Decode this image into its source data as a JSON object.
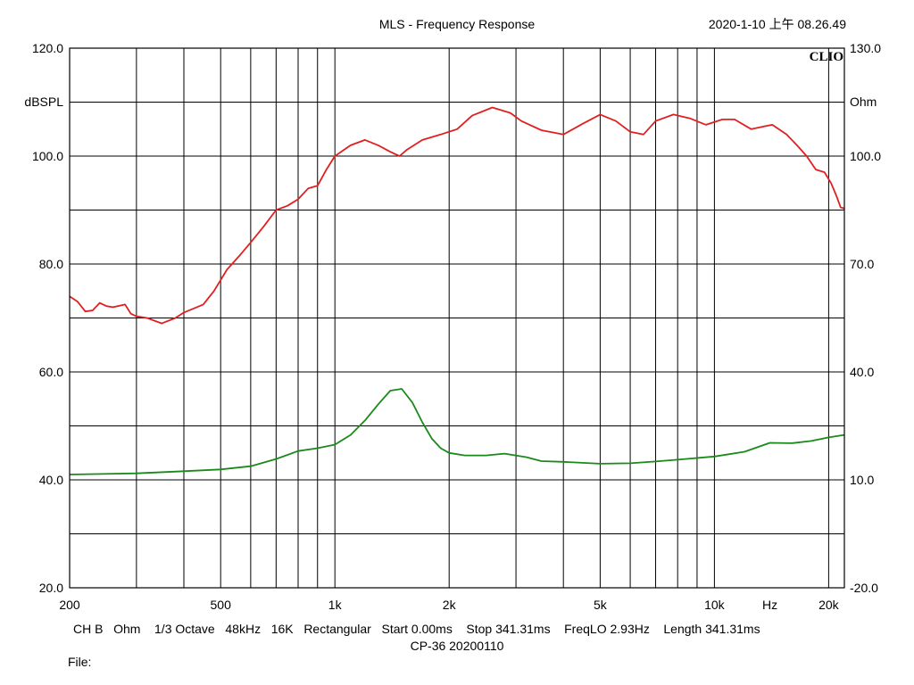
{
  "chart_data": {
    "type": "line",
    "title": "MLS - Frequency Response",
    "timestamp": "2020-1-10 上午 08.26.49",
    "logo": "CLIO",
    "x_scale": "log",
    "xlim": [
      200,
      22000
    ],
    "x_ticks": [
      {
        "value": 200,
        "label": "200"
      },
      {
        "value": 500,
        "label": "500"
      },
      {
        "value": 1000,
        "label": "1k"
      },
      {
        "value": 2000,
        "label": "2k"
      },
      {
        "value": 5000,
        "label": "5k"
      },
      {
        "value": 10000,
        "label": "10k"
      },
      {
        "value": 14000,
        "label": "Hz"
      },
      {
        "value": 20000,
        "label": "20k"
      }
    ],
    "x_gridlines": [
      300,
      400,
      500,
      600,
      700,
      800,
      900,
      1000,
      2000,
      3000,
      4000,
      5000,
      6000,
      7000,
      8000,
      9000,
      10000,
      20000
    ],
    "y_left": {
      "unit_label": "dBSPL",
      "ylim": [
        20,
        120
      ],
      "tick_values": [
        120,
        100,
        80,
        60,
        40,
        20
      ],
      "tick_labels": [
        "120.0",
        "100.0",
        "80.0",
        "60.0",
        "40.0",
        "20.0"
      ]
    },
    "y_right": {
      "unit_label": "Ohm",
      "ylim": [
        -20,
        130
      ],
      "tick_values": [
        130,
        100,
        70,
        40,
        10,
        -20
      ],
      "tick_labels": [
        "130.0",
        "100.0",
        "70.0",
        "40.0",
        "10.0",
        "-20.0"
      ]
    },
    "grid": true,
    "series": [
      {
        "axis": "left",
        "color": "#e02020",
        "points": [
          [
            200,
            74
          ],
          [
            210,
            73
          ],
          [
            220,
            71.2
          ],
          [
            230,
            71.4
          ],
          [
            240,
            72.8
          ],
          [
            250,
            72.2
          ],
          [
            260,
            72.0
          ],
          [
            280,
            72.5
          ],
          [
            290,
            70.8
          ],
          [
            300,
            70.3
          ],
          [
            320,
            70.0
          ],
          [
            350,
            69.0
          ],
          [
            380,
            70.0
          ],
          [
            400,
            71.0
          ],
          [
            450,
            72.5
          ],
          [
            480,
            75.0
          ],
          [
            520,
            79.0
          ],
          [
            560,
            81.5
          ],
          [
            600,
            84.0
          ],
          [
            650,
            87.0
          ],
          [
            700,
            90.0
          ],
          [
            750,
            90.8
          ],
          [
            800,
            92.0
          ],
          [
            850,
            94.0
          ],
          [
            900,
            94.5
          ],
          [
            950,
            97.5
          ],
          [
            1000,
            100.0
          ],
          [
            1100,
            102.0
          ],
          [
            1200,
            103.0
          ],
          [
            1300,
            102.0
          ],
          [
            1400,
            100.8
          ],
          [
            1480,
            100.0
          ],
          [
            1550,
            101.2
          ],
          [
            1700,
            103.0
          ],
          [
            1900,
            104.0
          ],
          [
            2100,
            105.0
          ],
          [
            2300,
            107.5
          ],
          [
            2600,
            109.0
          ],
          [
            2900,
            108.0
          ],
          [
            3100,
            106.5
          ],
          [
            3500,
            104.8
          ],
          [
            4000,
            104.0
          ],
          [
            4500,
            106.0
          ],
          [
            5000,
            107.7
          ],
          [
            5500,
            106.5
          ],
          [
            6000,
            104.5
          ],
          [
            6500,
            104.0
          ],
          [
            7000,
            106.5
          ],
          [
            7800,
            107.7
          ],
          [
            8600,
            107.0
          ],
          [
            9500,
            105.8
          ],
          [
            10500,
            106.8
          ],
          [
            11300,
            106.8
          ],
          [
            12500,
            105.0
          ],
          [
            13500,
            105.5
          ],
          [
            14200,
            105.8
          ],
          [
            15500,
            104.0
          ],
          [
            16500,
            102.0
          ],
          [
            17500,
            100.0
          ],
          [
            18500,
            97.5
          ],
          [
            19500,
            97.0
          ],
          [
            20300,
            95.0
          ],
          [
            21000,
            92.5
          ],
          [
            21500,
            90.5
          ],
          [
            22000,
            90.3
          ]
        ]
      },
      {
        "axis": "right",
        "color": "#1a8a1a",
        "points": [
          [
            200,
            11.5
          ],
          [
            300,
            11.8
          ],
          [
            400,
            12.4
          ],
          [
            500,
            12.9
          ],
          [
            600,
            13.8
          ],
          [
            700,
            15.8
          ],
          [
            800,
            18.0
          ],
          [
            900,
            18.8
          ],
          [
            1000,
            19.8
          ],
          [
            1100,
            22.5
          ],
          [
            1200,
            26.5
          ],
          [
            1300,
            31.0
          ],
          [
            1400,
            34.8
          ],
          [
            1500,
            35.3
          ],
          [
            1600,
            31.5
          ],
          [
            1700,
            26.0
          ],
          [
            1800,
            21.5
          ],
          [
            1900,
            18.8
          ],
          [
            2000,
            17.5
          ],
          [
            2200,
            16.8
          ],
          [
            2500,
            16.8
          ],
          [
            2800,
            17.3
          ],
          [
            3200,
            16.3
          ],
          [
            3500,
            15.2
          ],
          [
            4000,
            15.0
          ],
          [
            5000,
            14.5
          ],
          [
            6000,
            14.6
          ],
          [
            7000,
            15.1
          ],
          [
            8000,
            15.6
          ],
          [
            10000,
            16.5
          ],
          [
            12000,
            17.8
          ],
          [
            14000,
            20.3
          ],
          [
            16000,
            20.2
          ],
          [
            18000,
            20.8
          ],
          [
            20000,
            21.8
          ],
          [
            22000,
            22.5
          ]
        ]
      }
    ]
  },
  "footer": {
    "settings": "CH B   Ohm    1/3 Octave   48kHz   16K   Rectangular   Start 0.00ms    Stop 341.31ms    FreqLO 2.93Hz    Length 341.31ms",
    "name": "CP-36  20200110",
    "file_label": "File:"
  }
}
